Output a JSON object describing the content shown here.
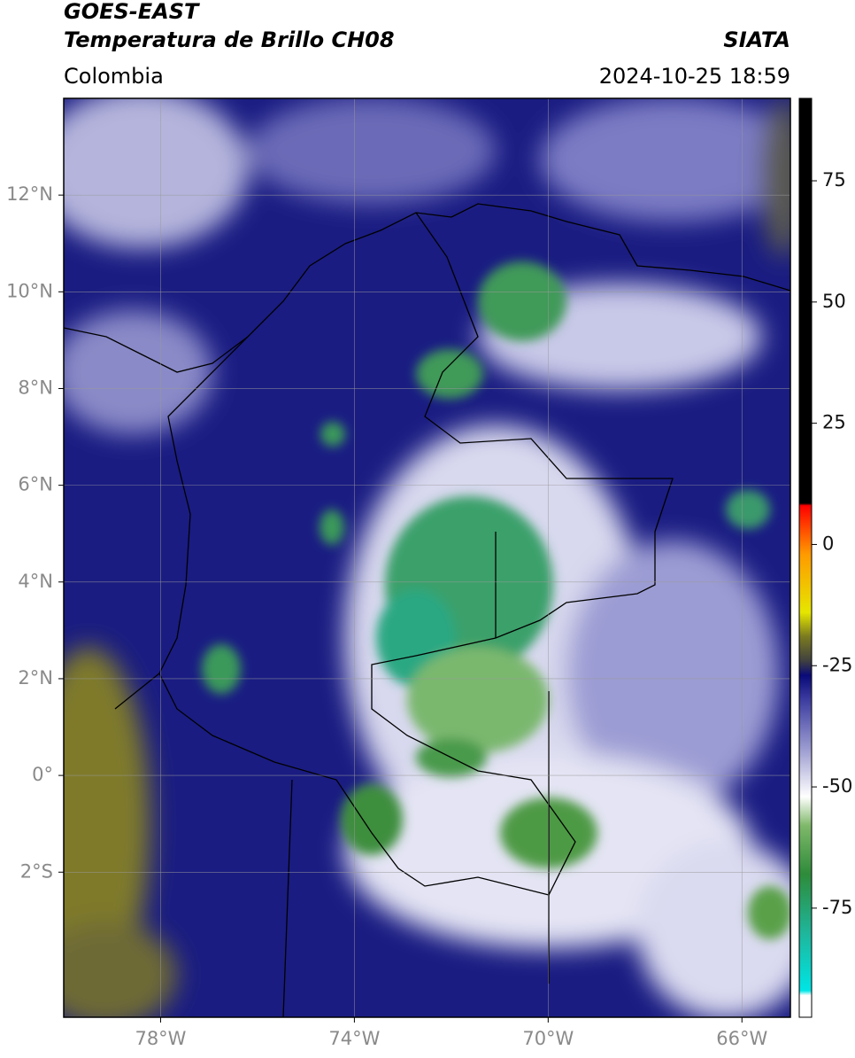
{
  "chart_data": {
    "type": "map",
    "title": "GOES-EAST",
    "subtitle": "Temperatura de Brillo CH08",
    "source": "SIATA",
    "region": "Colombia",
    "datetime": "2024-10-25 18:59",
    "xlim": [
      -80,
      -65
    ],
    "ylim": [
      -5,
      14
    ],
    "xticks": [
      {
        "value": -78,
        "label": "78°W"
      },
      {
        "value": -74,
        "label": "74°W"
      },
      {
        "value": -70,
        "label": "70°W"
      },
      {
        "value": -66,
        "label": "66°W"
      }
    ],
    "yticks": [
      {
        "value": 12,
        "label": "12°N"
      },
      {
        "value": 10,
        "label": "10°N"
      },
      {
        "value": 8,
        "label": "8°N"
      },
      {
        "value": 6,
        "label": "6°N"
      },
      {
        "value": 4,
        "label": "4°N"
      },
      {
        "value": 2,
        "label": "2°N"
      },
      {
        "value": 0,
        "label": "0°"
      },
      {
        "value": -2,
        "label": "2°S"
      }
    ],
    "grid": true,
    "colorbar": {
      "lim": [
        -97.5,
        92
      ],
      "ticks": [
        75,
        50,
        25,
        0,
        -25,
        -50,
        -75
      ],
      "colormap": [
        {
          "value": -97.5,
          "color": "#ffffff"
        },
        {
          "value": -93,
          "color": "#ffffff"
        },
        {
          "value": -92,
          "color": "#00e5e5"
        },
        {
          "value": -80,
          "color": "#1fb59a"
        },
        {
          "value": -68,
          "color": "#2e8b3a"
        },
        {
          "value": -58,
          "color": "#7fb86a"
        },
        {
          "value": -52,
          "color": "#ffffff"
        },
        {
          "value": -42,
          "color": "#9a9ad0"
        },
        {
          "value": -32,
          "color": "#3c3ca0"
        },
        {
          "value": -27,
          "color": "#0a0a78"
        },
        {
          "value": -24,
          "color": "#404040"
        },
        {
          "value": -19,
          "color": "#7a7a20"
        },
        {
          "value": -14,
          "color": "#e6e600"
        },
        {
          "value": -2,
          "color": "#ff9a00"
        },
        {
          "value": 8,
          "color": "#ff0000"
        },
        {
          "value": 8.5,
          "color": "#000000"
        },
        {
          "value": 92,
          "color": "#000000"
        }
      ]
    }
  }
}
